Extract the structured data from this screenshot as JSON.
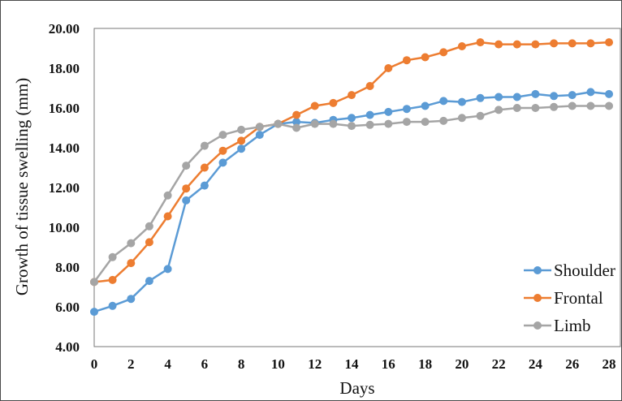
{
  "chart_data": {
    "type": "line",
    "title": "",
    "xlabel": "Days",
    "ylabel": "Growth of tissue swelling (mm)",
    "xlim": [
      0,
      28
    ],
    "ylim": [
      4,
      20
    ],
    "x_ticks": [
      "0",
      "2",
      "4",
      "6",
      "8",
      "10",
      "12",
      "14",
      "16",
      "18",
      "20",
      "22",
      "24",
      "26",
      "28"
    ],
    "y_ticks": [
      "4.00",
      "6.00",
      "8.00",
      "10.00",
      "12.00",
      "14.00",
      "16.00",
      "18.00",
      "20.00"
    ],
    "grid": false,
    "legend_position": "right",
    "x": [
      0,
      1,
      2,
      3,
      4,
      5,
      6,
      7,
      8,
      9,
      10,
      11,
      12,
      13,
      14,
      15,
      16,
      17,
      18,
      19,
      20,
      21,
      22,
      23,
      24,
      25,
      26,
      27,
      28
    ],
    "series": [
      {
        "name": "Shoulder",
        "color": "#5b9bd5",
        "values": [
          5.75,
          6.05,
          6.4,
          7.3,
          7.9,
          11.35,
          12.1,
          13.25,
          13.95,
          14.65,
          15.2,
          15.3,
          15.25,
          15.4,
          15.5,
          15.65,
          15.8,
          15.95,
          16.1,
          16.35,
          16.3,
          16.5,
          16.55,
          16.55,
          16.7,
          16.6,
          16.65,
          16.8,
          16.7
        ]
      },
      {
        "name": "Frontal",
        "color": "#ed7d31",
        "values": [
          7.25,
          7.35,
          8.2,
          9.25,
          10.55,
          11.95,
          13.0,
          13.85,
          14.35,
          15.05,
          15.2,
          15.65,
          16.1,
          16.25,
          16.65,
          17.1,
          18.0,
          18.4,
          18.55,
          18.8,
          19.1,
          19.3,
          19.2,
          19.2,
          19.2,
          19.25,
          19.25,
          19.25,
          19.3
        ]
      },
      {
        "name": "Limb",
        "color": "#a5a5a5",
        "values": [
          7.25,
          8.5,
          9.2,
          10.05,
          11.6,
          13.1,
          14.1,
          14.65,
          14.9,
          15.05,
          15.2,
          15.0,
          15.2,
          15.2,
          15.1,
          15.15,
          15.2,
          15.3,
          15.3,
          15.35,
          15.5,
          15.6,
          15.9,
          16.0,
          16.0,
          16.05,
          16.1,
          16.1,
          16.1
        ]
      }
    ]
  }
}
